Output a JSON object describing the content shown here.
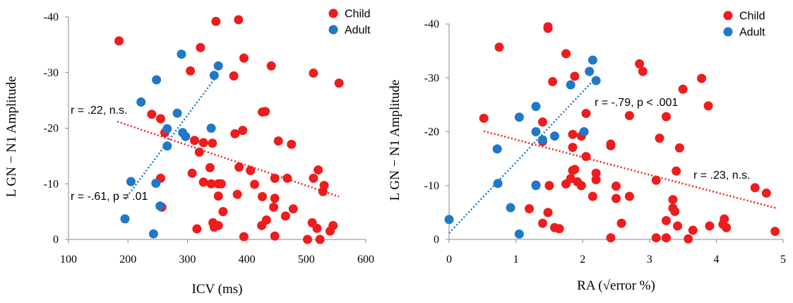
{
  "colors": {
    "child": "#ee1c1c",
    "adult": "#1f78c8",
    "axis": "#888888"
  },
  "chart_data": [
    {
      "type": "scatter",
      "xlabel": "ICV (ms)",
      "ylabel": "L GN − N1 Amplitude",
      "xlim": [
        100,
        600
      ],
      "ylim": [
        0,
        -40
      ],
      "xticks": [
        100,
        200,
        300,
        400,
        500,
        600
      ],
      "yticks": [
        0,
        -10,
        -20,
        -30,
        -40
      ],
      "xtick_labels": [
        "100",
        "200",
        "300",
        "400",
        "500",
        "600"
      ],
      "ytick_labels": [
        "0",
        "-10",
        "-20",
        "-30",
        "-40"
      ],
      "legend_position": "top-right",
      "series": [
        {
          "name": "Child",
          "color": "#ee1c1c",
          "points": [
            [
              185,
              -35.7
            ],
            [
              240,
              -22.5
            ],
            [
              255,
              -21.7
            ],
            [
              262,
              -19.2
            ],
            [
              255,
              -11
            ],
            [
              257,
              -5.8
            ],
            [
              305,
              -30.3
            ],
            [
              322,
              -34.5
            ],
            [
              320,
              -15.7
            ],
            [
              327,
              -17.4
            ],
            [
              312,
              -17.8
            ],
            [
              342,
              -17.3
            ],
            [
              308,
              -11.9
            ],
            [
              327,
              -10.3
            ],
            [
              338,
              -12.9
            ],
            [
              340,
              -10
            ],
            [
              352,
              -10
            ],
            [
              357,
              -10
            ],
            [
              352,
              -7.8
            ],
            [
              360,
              -5
            ],
            [
              343,
              -3
            ],
            [
              345,
              -2.2
            ],
            [
              352,
              -2.5
            ],
            [
              316,
              -1.9
            ],
            [
              348,
              -39.2
            ],
            [
              386,
              -39.5
            ],
            [
              395,
              -32.6
            ],
            [
              378,
              -29.4
            ],
            [
              441,
              -31.2
            ],
            [
              426,
              -22.9
            ],
            [
              431,
              -23
            ],
            [
              380,
              -19
            ],
            [
              393,
              -19.6
            ],
            [
              387,
              -13
            ],
            [
              406,
              -12.4
            ],
            [
              413,
              -9.9
            ],
            [
              426,
              -7.7
            ],
            [
              384,
              -8.1
            ],
            [
              395,
              -0.5
            ],
            [
              425,
              -2.5
            ],
            [
              433,
              -3.5
            ],
            [
              445,
              -5.8
            ],
            [
              447,
              -7.4
            ],
            [
              447,
              -11
            ],
            [
              453,
              -17.7
            ],
            [
              475,
              -17.1
            ],
            [
              468,
              -11
            ],
            [
              465,
              -4.2
            ],
            [
              478,
              -5.5
            ],
            [
              447,
              -0.6
            ],
            [
              512,
              -29.9
            ],
            [
              555,
              -28.1
            ],
            [
              512,
              -11
            ],
            [
              520,
              -12.5
            ],
            [
              530,
              -9.7
            ],
            [
              528,
              -8.6
            ],
            [
              510,
              -3
            ],
            [
              518,
              -2
            ],
            [
              540,
              -1.5
            ],
            [
              545,
              -2.5
            ],
            [
              502,
              0
            ],
            [
              523,
              0
            ]
          ]
        },
        {
          "name": "Adult",
          "color": "#1f78c8",
          "points": [
            [
              195,
              -3.7
            ],
            [
              205,
              -10.4
            ],
            [
              222,
              -24.7
            ],
            [
              243,
              -1
            ],
            [
              247,
              -10.1
            ],
            [
              248,
              -28.7
            ],
            [
              254,
              -6
            ],
            [
              266,
              -19.9
            ],
            [
              266,
              -16.8
            ],
            [
              283,
              -22.7
            ],
            [
              290,
              -33.3
            ],
            [
              292,
              -19.2
            ],
            [
              297,
              -18.5
            ],
            [
              340,
              -20
            ],
            [
              345,
              -29.5
            ],
            [
              352,
              -31.2
            ]
          ]
        }
      ],
      "trendlines": [
        {
          "series": "Child",
          "from": [
            182,
            -21.2
          ],
          "to": [
            555,
            -7.7
          ],
          "label": "r = .22, n.s."
        },
        {
          "series": "Adult",
          "from": [
            195,
            -7.2
          ],
          "to": [
            350,
            -29.5
          ],
          "label": "r = -.61, p = .01"
        }
      ]
    },
    {
      "type": "scatter",
      "xlabel": "RA (√error %)",
      "ylabel": "L GN − N1 Amplitude",
      "xlim": [
        0,
        5
      ],
      "ylim": [
        0,
        -40
      ],
      "xticks": [
        0,
        1,
        2,
        3,
        4,
        5
      ],
      "yticks": [
        0,
        -10,
        -20,
        -30,
        -40
      ],
      "xtick_labels": [
        "0",
        "1",
        "2",
        "3",
        "4",
        "5"
      ],
      "ytick_labels": [
        "0",
        "-10",
        "-20",
        "-30",
        "-40"
      ],
      "legend_position": "top-right",
      "series": [
        {
          "name": "Child",
          "color": "#ee1c1c",
          "points": [
            [
              0.52,
              -22.5
            ],
            [
              0.75,
              -35.7
            ],
            [
              1.48,
              -39.2
            ],
            [
              1.48,
              -39.5
            ],
            [
              1.55,
              -29.3
            ],
            [
              1.75,
              -34.5
            ],
            [
              1.88,
              -30.3
            ],
            [
              2.05,
              -23.4
            ],
            [
              2.05,
              -15.4
            ],
            [
              1.98,
              -19.2
            ],
            [
              1.85,
              -19.5
            ],
            [
              1.85,
              -17.1
            ],
            [
              1.4,
              -21.8
            ],
            [
              1.4,
              -18.2
            ],
            [
              1.3,
              -10.1
            ],
            [
              1.5,
              -10
            ],
            [
              1.48,
              -5
            ],
            [
              1.2,
              -5.7
            ],
            [
              1.4,
              -3
            ],
            [
              1.58,
              -2.2
            ],
            [
              1.65,
              -2
            ],
            [
              1.75,
              -10.3
            ],
            [
              1.82,
              -11.3
            ],
            [
              1.85,
              -12.8
            ],
            [
              1.88,
              -13
            ],
            [
              1.92,
              -10.7
            ],
            [
              1.98,
              -10
            ],
            [
              2.2,
              -12.3
            ],
            [
              2.2,
              -11.1
            ],
            [
              2.15,
              -8
            ],
            [
              2.42,
              -17.7
            ],
            [
              2.42,
              -17.4
            ],
            [
              2.5,
              -9.9
            ],
            [
              2.5,
              -7.6
            ],
            [
              2.42,
              -0.3
            ],
            [
              2.58,
              -3
            ],
            [
              2.7,
              -23
            ],
            [
              2.7,
              -8
            ],
            [
              2.85,
              -32.6
            ],
            [
              2.9,
              -31.2
            ],
            [
              3.1,
              -11
            ],
            [
              3.15,
              -18.8
            ],
            [
              3.25,
              -22.8
            ],
            [
              3.25,
              -3.5
            ],
            [
              3.25,
              -0.3
            ],
            [
              3.1,
              -0.3
            ],
            [
              3.35,
              -7.4
            ],
            [
              3.35,
              -5.8
            ],
            [
              3.38,
              -5.2
            ],
            [
              3.4,
              -12.7
            ],
            [
              3.42,
              -2.5
            ],
            [
              3.45,
              -17
            ],
            [
              3.5,
              -27.9
            ],
            [
              3.58,
              -0.1
            ],
            [
              3.65,
              -1.7
            ],
            [
              3.78,
              -29.9
            ],
            [
              3.88,
              -24.8
            ],
            [
              3.9,
              -2.5
            ],
            [
              4.1,
              -2.8
            ],
            [
              4.12,
              -3.8
            ],
            [
              4.15,
              -2.2
            ],
            [
              4.58,
              -9.6
            ],
            [
              4.75,
              -8.6
            ],
            [
              4.88,
              -1.5
            ]
          ]
        },
        {
          "name": "Adult",
          "color": "#1f78c8",
          "points": [
            [
              0,
              -3.7
            ],
            [
              0.72,
              -16.8
            ],
            [
              0.73,
              -10.4
            ],
            [
              0.92,
              -5.9
            ],
            [
              1.05,
              -22.7
            ],
            [
              1.05,
              -1
            ],
            [
              1.3,
              -24.7
            ],
            [
              1.3,
              -20
            ],
            [
              1.3,
              -10
            ],
            [
              1.4,
              -18.5
            ],
            [
              1.58,
              -19.2
            ],
            [
              1.82,
              -28.7
            ],
            [
              2.02,
              -20
            ],
            [
              2.1,
              -31.2
            ],
            [
              2.15,
              -33.3
            ],
            [
              2.2,
              -29.5
            ]
          ]
        }
      ],
      "trendlines": [
        {
          "series": "Child",
          "from": [
            0.52,
            -20.1
          ],
          "to": [
            4.9,
            -5.8
          ],
          "label": "r = .23, n.s."
        },
        {
          "series": "Adult",
          "from": [
            0,
            -1.2
          ],
          "to": [
            2.15,
            -29.4
          ],
          "label": "r = -.79, p < .001"
        }
      ]
    }
  ]
}
